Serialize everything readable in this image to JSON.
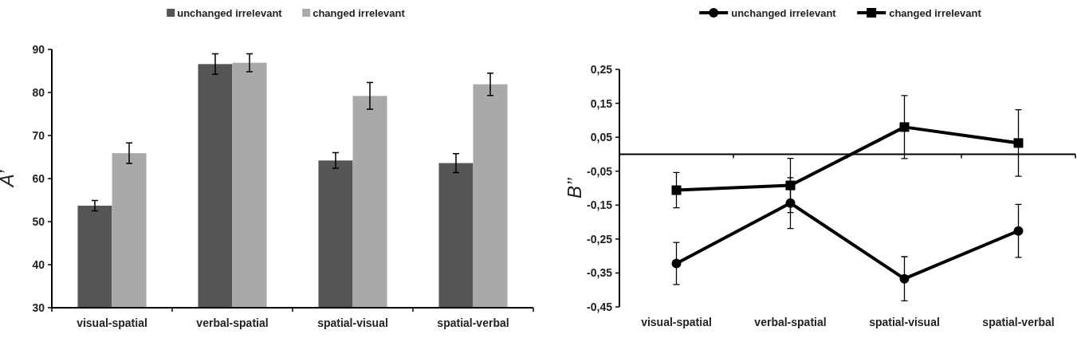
{
  "chart_data": [
    {
      "type": "bar",
      "ylabel": "A’",
      "categories": [
        "visual-spatial",
        "verbal-spatial",
        "spatial-visual",
        "spatial-verbal"
      ],
      "ylim": [
        30,
        90
      ],
      "yticks": [
        30,
        40,
        50,
        60,
        70,
        80,
        90
      ],
      "legend": "top",
      "grid": false,
      "series": [
        {
          "name": "unchanged irrelevant",
          "color": "#555555",
          "values": [
            53.7,
            86.6,
            64.2,
            63.6
          ],
          "errors": [
            1.2,
            2.4,
            1.8,
            2.2
          ]
        },
        {
          "name": "changed irrelevant",
          "color": "#a9a9a9",
          "values": [
            65.9,
            86.9,
            79.2,
            81.9
          ],
          "errors": [
            2.4,
            2.1,
            3.1,
            2.6
          ]
        }
      ]
    },
    {
      "type": "line",
      "ylabel": "B’’",
      "categories": [
        "visual-spatial",
        "verbal-spatial",
        "spatial-visual",
        "spatial-verbal"
      ],
      "ylim": [
        -0.45,
        0.25
      ],
      "yticks": [
        {
          "value": 0.25,
          "label": "0,25"
        },
        {
          "value": 0.15,
          "label": "0,15"
        },
        {
          "value": 0.05,
          "label": "0,05"
        },
        {
          "value": -0.05,
          "label": "-0,05"
        },
        {
          "value": -0.15,
          "label": "-0,15"
        },
        {
          "value": -0.25,
          "label": "-0,25"
        },
        {
          "value": -0.35,
          "label": "-0,35"
        },
        {
          "value": -0.45,
          "label": "-0,45"
        }
      ],
      "legend": "top",
      "grid": false,
      "line_style": "solid",
      "series": [
        {
          "name": "unchanged irrelevant",
          "color": "#000000",
          "marker": "circle",
          "values": [
            -0.322,
            -0.144,
            -0.367,
            -0.226
          ],
          "errors": [
            0.062,
            0.075,
            0.065,
            0.078
          ]
        },
        {
          "name": "changed irrelevant",
          "color": "#000000",
          "marker": "square",
          "values": [
            -0.106,
            -0.092,
            0.08,
            0.033
          ],
          "errors": [
            0.052,
            0.08,
            0.093,
            0.098
          ]
        }
      ]
    }
  ]
}
